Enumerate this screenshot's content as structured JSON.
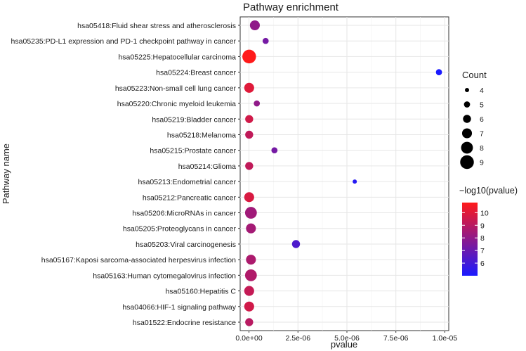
{
  "chart_data": {
    "type": "scatter",
    "title": "Pathway enrichment",
    "xlabel": "pvalue",
    "ylabel": "Pathway name",
    "xlim": [
      -4.5e-07,
      1.02e-05
    ],
    "x_ticks": [
      0,
      2.5e-06,
      5e-06,
      7.5e-06,
      1e-05
    ],
    "x_tick_labels": [
      "0.0e+00",
      "2.5e-06",
      "5.0e-06",
      "7.5e-06",
      "1.0e-05"
    ],
    "categories": [
      "hsa05418:Fluid shear stress and atherosclerosis",
      "hsa05235:PD-L1 expression and PD-1 checkpoint pathway in cancer",
      "hsa05225:Hepatocellular carcinoma",
      "hsa05224:Breast cancer",
      "hsa05223:Non-small cell lung cancer",
      "hsa05220:Chronic myeloid leukemia",
      "hsa05219:Bladder cancer",
      "hsa05218:Melanoma",
      "hsa05215:Prostate cancer",
      "hsa05214:Glioma",
      "hsa05213:Endometrial cancer",
      "hsa05212:Pancreatic cancer",
      "hsa05206:MicroRNAs in cancer",
      "hsa05205:Proteoglycans in cancer",
      "hsa05203:Viral carcinogenesis",
      "hsa05167:Kaposi sarcoma-associated herpesvirus infection",
      "hsa05163:Human cytomegalovirus infection",
      "hsa05160:Hepatitis C",
      "hsa04066:HIF-1 signaling pathway",
      "hsa01522:Endocrine resistance"
    ],
    "points": [
      {
        "pvalue": 3e-07,
        "count": 7,
        "neg_log10_p": 8.0
      },
      {
        "pvalue": 8.5e-07,
        "count": 5,
        "neg_log10_p": 7.3
      },
      {
        "pvalue": 1e-08,
        "count": 9,
        "neg_log10_p": 10.8
      },
      {
        "pvalue": 9.7e-06,
        "count": 5,
        "neg_log10_p": 5.0
      },
      {
        "pvalue": 1e-08,
        "count": 7,
        "neg_log10_p": 10.0
      },
      {
        "pvalue": 4e-07,
        "count": 5,
        "neg_log10_p": 8.0
      },
      {
        "pvalue": 1e-08,
        "count": 6,
        "neg_log10_p": 9.6
      },
      {
        "pvalue": 1e-08,
        "count": 6,
        "neg_log10_p": 9.2
      },
      {
        "pvalue": 1.3e-06,
        "count": 5,
        "neg_log10_p": 7.3
      },
      {
        "pvalue": 1e-08,
        "count": 6,
        "neg_log10_p": 9.2
      },
      {
        "pvalue": 5.4e-06,
        "count": 4,
        "neg_log10_p": 5.3
      },
      {
        "pvalue": 1e-08,
        "count": 7,
        "neg_log10_p": 9.8
      },
      {
        "pvalue": 1e-07,
        "count": 8,
        "neg_log10_p": 8.4
      },
      {
        "pvalue": 1e-07,
        "count": 7,
        "neg_log10_p": 8.5
      },
      {
        "pvalue": 2.4e-06,
        "count": 6,
        "neg_log10_p": 6.3
      },
      {
        "pvalue": 1e-07,
        "count": 7,
        "neg_log10_p": 8.7
      },
      {
        "pvalue": 1e-07,
        "count": 8,
        "neg_log10_p": 8.8
      },
      {
        "pvalue": 1e-08,
        "count": 7,
        "neg_log10_p": 9.3
      },
      {
        "pvalue": 1e-08,
        "count": 7,
        "neg_log10_p": 9.6
      },
      {
        "pvalue": 1e-08,
        "count": 6,
        "neg_log10_p": 9.0
      }
    ],
    "size_legend": {
      "title": "Count",
      "values": [
        4,
        5,
        6,
        7,
        8,
        9
      ]
    },
    "color_legend": {
      "title": "−log10(pvalue)",
      "min": 5.0,
      "max": 10.8,
      "ticks": [
        6,
        7,
        8,
        9,
        10
      ],
      "low_color": "#1a1aff",
      "high_color": "#ff1a1a"
    },
    "grid": true,
    "panel_background": "#ffffff",
    "grid_color": "#e6e6e6"
  }
}
